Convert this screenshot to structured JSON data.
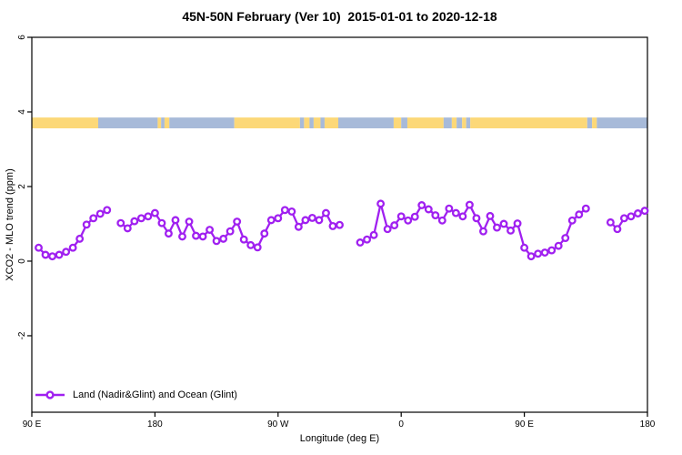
{
  "colors": {
    "series": "#A020F0",
    "marker_fill": "#FFFFFF",
    "land": "#FCD878",
    "ocean": "#A7BAD9",
    "axis": "#000000",
    "background": "#FFFFFF"
  },
  "chart_data": {
    "type": "line",
    "title": "45N-50N February (Ver 10)  2015-01-01 to 2020-12-18",
    "xlabel": "Longitude (deg E)",
    "ylabel": "XCO2 - MLO trend (ppm)",
    "xlim": [
      90,
      540
    ],
    "ylim": [
      -4.05,
      6
    ],
    "grid": false,
    "marker": "open-circle",
    "legend_position": "bottom-left",
    "x_ticks": [
      {
        "value": 90,
        "label": "90 E"
      },
      {
        "value": 180,
        "label": "180"
      },
      {
        "value": 270,
        "label": "90 W"
      },
      {
        "value": 360,
        "label": "0"
      },
      {
        "value": 450,
        "label": "90 E"
      },
      {
        "value": 540,
        "label": "180"
      }
    ],
    "y_ticks": [
      {
        "value": 6,
        "label": "6"
      },
      {
        "value": 4,
        "label": "4"
      },
      {
        "value": 2,
        "label": "2"
      },
      {
        "value": 0,
        "label": "0"
      },
      {
        "value": -2,
        "label": "-2"
      }
    ],
    "land_ocean_band": {
      "y_top": 3.85,
      "y_bottom": 3.56,
      "segments": [
        {
          "from": 90,
          "to": 138.5,
          "type": "land"
        },
        {
          "from": 138.5,
          "to": 182,
          "type": "ocean"
        },
        {
          "from": 182,
          "to": 184.5,
          "type": "land"
        },
        {
          "from": 184.5,
          "to": 187,
          "type": "ocean"
        },
        {
          "from": 187,
          "to": 190.5,
          "type": "land"
        },
        {
          "from": 190.5,
          "to": 238,
          "type": "ocean"
        },
        {
          "from": 238,
          "to": 286,
          "type": "land"
        },
        {
          "from": 286,
          "to": 289,
          "type": "ocean"
        },
        {
          "from": 289,
          "to": 293,
          "type": "land"
        },
        {
          "from": 293,
          "to": 296,
          "type": "ocean"
        },
        {
          "from": 296,
          "to": 301,
          "type": "land"
        },
        {
          "from": 301,
          "to": 304,
          "type": "ocean"
        },
        {
          "from": 304,
          "to": 314,
          "type": "land"
        },
        {
          "from": 314,
          "to": 354.5,
          "type": "ocean"
        },
        {
          "from": 354.5,
          "to": 360,
          "type": "land"
        },
        {
          "from": 360,
          "to": 364.5,
          "type": "ocean"
        },
        {
          "from": 364.5,
          "to": 391,
          "type": "land"
        },
        {
          "from": 391,
          "to": 397,
          "type": "ocean"
        },
        {
          "from": 397,
          "to": 400.5,
          "type": "land"
        },
        {
          "from": 400.5,
          "to": 404.5,
          "type": "ocean"
        },
        {
          "from": 404.5,
          "to": 407.5,
          "type": "land"
        },
        {
          "from": 407.5,
          "to": 410.5,
          "type": "ocean"
        },
        {
          "from": 410.5,
          "to": 496,
          "type": "land"
        },
        {
          "from": 496,
          "to": 499.5,
          "type": "ocean"
        },
        {
          "from": 499.5,
          "to": 503,
          "type": "land"
        },
        {
          "from": 503,
          "to": 540,
          "type": "ocean"
        }
      ]
    },
    "series": [
      {
        "name": "Land (Nadir&Glint) and Ocean (Glint)",
        "segments": [
          [
            [
              95,
              0.36
            ],
            [
              100,
              0.17
            ],
            [
              105,
              0.13
            ],
            [
              110,
              0.17
            ],
            [
              115,
              0.25
            ],
            [
              120,
              0.36
            ],
            [
              125,
              0.6
            ],
            [
              130,
              0.98
            ],
            [
              135,
              1.15
            ],
            [
              140,
              1.27
            ],
            [
              145,
              1.37
            ]
          ],
          [
            [
              155,
              1.02
            ],
            [
              160,
              0.88
            ],
            [
              165,
              1.07
            ],
            [
              170,
              1.15
            ],
            [
              175,
              1.2
            ],
            [
              180,
              1.29
            ],
            [
              185,
              1.02
            ],
            [
              190,
              0.74
            ],
            [
              195,
              1.1
            ],
            [
              200,
              0.66
            ],
            [
              205,
              1.06
            ],
            [
              210,
              0.68
            ],
            [
              215,
              0.66
            ],
            [
              220,
              0.84
            ],
            [
              225,
              0.54
            ],
            [
              230,
              0.6
            ],
            [
              235,
              0.8
            ],
            [
              240,
              1.06
            ],
            [
              245,
              0.58
            ],
            [
              250,
              0.43
            ],
            [
              255,
              0.37
            ],
            [
              260,
              0.74
            ],
            [
              265,
              1.1
            ],
            [
              270,
              1.15
            ],
            [
              275,
              1.37
            ],
            [
              280,
              1.33
            ],
            [
              285,
              0.92
            ],
            [
              290,
              1.1
            ],
            [
              295,
              1.16
            ],
            [
              300,
              1.1
            ],
            [
              305,
              1.29
            ],
            [
              310,
              0.94
            ],
            [
              315,
              0.97
            ]
          ],
          [
            [
              330,
              0.5
            ],
            [
              335,
              0.58
            ],
            [
              340,
              0.7
            ],
            [
              345,
              1.54
            ],
            [
              350,
              0.86
            ],
            [
              355,
              0.96
            ],
            [
              360,
              1.2
            ],
            [
              365,
              1.09
            ],
            [
              370,
              1.19
            ],
            [
              375,
              1.5
            ],
            [
              380,
              1.39
            ],
            [
              385,
              1.23
            ],
            [
              390,
              1.09
            ],
            [
              395,
              1.41
            ],
            [
              400,
              1.29
            ],
            [
              405,
              1.2
            ],
            [
              410,
              1.51
            ],
            [
              415,
              1.15
            ],
            [
              420,
              0.8
            ],
            [
              425,
              1.21
            ],
            [
              430,
              0.9
            ],
            [
              435,
              1.0
            ],
            [
              440,
              0.82
            ],
            [
              445,
              1.01
            ],
            [
              450,
              0.36
            ],
            [
              455,
              0.13
            ],
            [
              460,
              0.2
            ],
            [
              465,
              0.23
            ],
            [
              470,
              0.29
            ],
            [
              475,
              0.41
            ],
            [
              480,
              0.62
            ],
            [
              485,
              1.09
            ],
            [
              490,
              1.25
            ],
            [
              495,
              1.41
            ]
          ],
          [
            [
              513,
              1.04
            ],
            [
              518,
              0.86
            ],
            [
              523,
              1.15
            ],
            [
              528,
              1.2
            ],
            [
              533,
              1.28
            ],
            [
              538,
              1.35
            ]
          ]
        ]
      }
    ]
  }
}
